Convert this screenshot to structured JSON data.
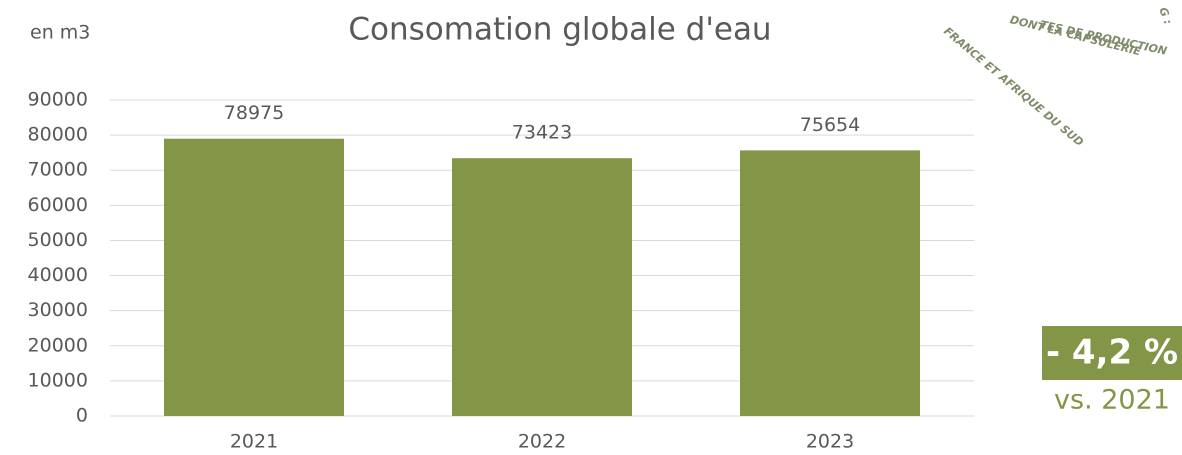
{
  "chart_data": {
    "type": "bar",
    "title": "Consomation globale d'eau",
    "y_label": "en m3",
    "categories": [
      "2021",
      "2022",
      "2023"
    ],
    "values": [
      78975,
      73423,
      75654
    ],
    "color": "#839647",
    "ylim": [
      0,
      90000
    ],
    "yticks": [
      0,
      10000,
      20000,
      30000,
      40000,
      50000,
      60000,
      70000,
      80000,
      90000
    ],
    "grid": true,
    "badge": {
      "text": "- 4,2 %",
      "subtext": "vs. 2021"
    },
    "stamp": [
      "TES DE PRODUCTION",
      "DONT LA CAPSULERIE",
      "FRANCE ET AFRIQUE DU SUD",
      "G :"
    ]
  }
}
